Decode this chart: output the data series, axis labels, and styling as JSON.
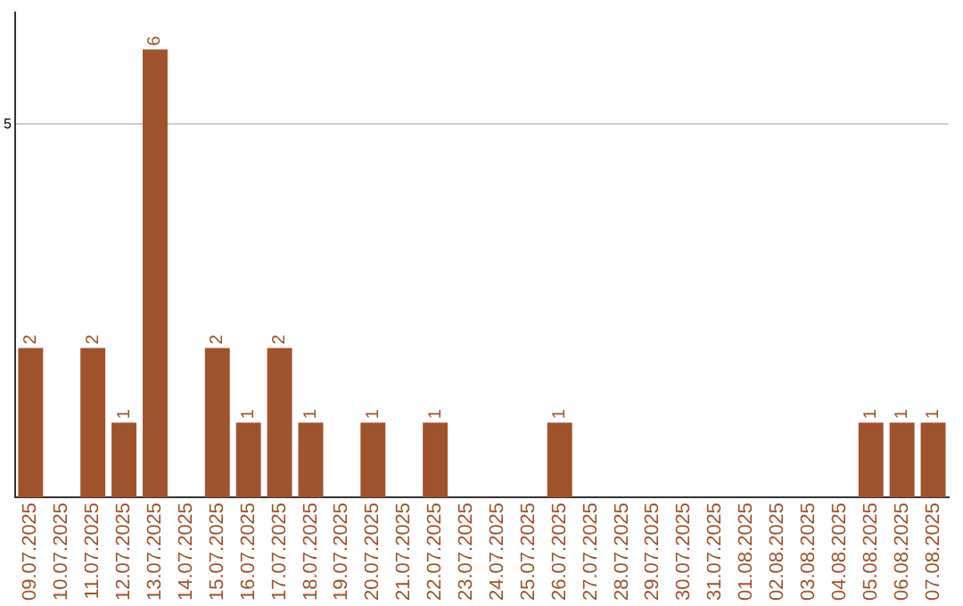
{
  "chart_data": {
    "type": "bar",
    "categories": [
      "09.07.2025",
      "10.07.2025",
      "11.07.2025",
      "12.07.2025",
      "13.07.2025",
      "14.07.2025",
      "15.07.2025",
      "16.07.2025",
      "17.07.2025",
      "18.07.2025",
      "19.07.2025",
      "20.07.2025",
      "21.07.2025",
      "22.07.2025",
      "23.07.2025",
      "24.07.2025",
      "25.07.2025",
      "26.07.2025",
      "27.07.2025",
      "28.07.2025",
      "29.07.2025",
      "30.07.2025",
      "31.07.2025",
      "01.08.2025",
      "02.08.2025",
      "03.08.2025",
      "04.08.2025",
      "05.08.2025",
      "06.08.2025",
      "07.08.2025"
    ],
    "values": [
      2,
      0,
      2,
      1,
      6,
      0,
      2,
      1,
      2,
      1,
      0,
      1,
      0,
      1,
      0,
      0,
      0,
      1,
      0,
      0,
      0,
      0,
      0,
      0,
      0,
      0,
      0,
      1,
      1,
      1
    ],
    "value_labels": [
      "2",
      null,
      "2",
      "1",
      "6",
      null,
      "2",
      "1",
      "2",
      "1",
      null,
      "1",
      null,
      "1",
      null,
      null,
      null,
      "1",
      null,
      null,
      null,
      null,
      null,
      null,
      null,
      null,
      null,
      "1",
      "1",
      "1"
    ],
    "color": "#a0522d",
    "ylim": [
      0,
      6.5
    ],
    "yticks": [
      5
    ],
    "grid": "y",
    "legend": false
  }
}
